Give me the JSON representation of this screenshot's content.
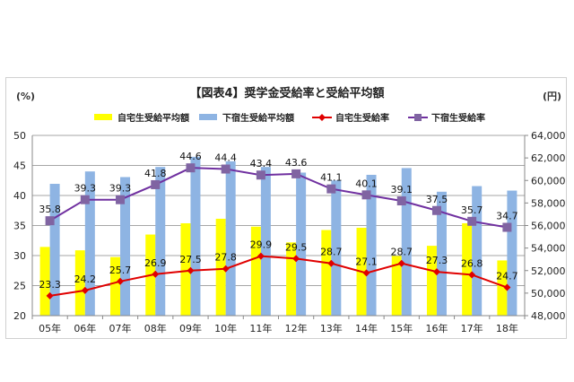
{
  "chart_data": {
    "type": "bar+line",
    "title": "【図表4】奨学金受給率と受給平均額",
    "y_left_unit": "(%)",
    "y_right_unit": "(円)",
    "ylim_left": [
      20,
      50
    ],
    "ylim_right": [
      48000,
      64000
    ],
    "yticks_left": [
      "20",
      "25",
      "30",
      "35",
      "40",
      "45",
      "50"
    ],
    "yticks_right": [
      "48,000",
      "50,000",
      "52,000",
      "54,000",
      "56,000",
      "58,000",
      "60,000",
      "62,000",
      "64,000"
    ],
    "grid": true,
    "legend_position": "top",
    "categories": [
      "05年",
      "06年",
      "07年",
      "08年",
      "09年",
      "10年",
      "11年",
      "12年",
      "13年",
      "14年",
      "15年",
      "16年",
      "17年",
      "18年"
    ],
    "series": [
      {
        "name": "自宅生受給平均額",
        "type": "bar",
        "axis": "right",
        "color": "#ffff00",
        "values": [
          54100,
          53800,
          53200,
          55200,
          56200,
          56600,
          55900,
          54500,
          55600,
          55800,
          53300,
          54200,
          56200,
          52900
        ]
      },
      {
        "name": "下宿生受給平均額",
        "type": "bar",
        "axis": "right",
        "color": "#8eb4e3",
        "values": [
          59700,
          60800,
          60300,
          61200,
          62100,
          61700,
          61200,
          60700,
          60000,
          60500,
          61100,
          59000,
          59500,
          59100
        ]
      },
      {
        "name": "自宅生受給率",
        "type": "line",
        "axis": "left",
        "color": "#e00000",
        "marker": "diamond",
        "values": [
          23.3,
          24.2,
          25.7,
          26.9,
          27.5,
          27.8,
          29.9,
          29.5,
          28.7,
          27.1,
          28.7,
          27.3,
          26.8,
          24.7
        ],
        "labels": [
          "23.3",
          "24.2",
          "25.7",
          "26.9",
          "27.5",
          "27.8",
          "29.9",
          "29.5",
          "28.7",
          "27.1",
          "28.7",
          "27.3",
          "26.8",
          "24.7"
        ]
      },
      {
        "name": "下宿生受給率",
        "type": "line",
        "axis": "left",
        "color": "#7030a0",
        "marker": "square",
        "marker_color": "#8064a2",
        "values": [
          35.8,
          39.3,
          39.3,
          41.8,
          44.6,
          44.4,
          43.4,
          43.6,
          41.1,
          40.1,
          39.1,
          37.5,
          35.7,
          34.7
        ],
        "labels": [
          "35.8",
          "39.3",
          "39.3",
          "41.8",
          "44.6",
          "44.4",
          "43.4",
          "43.6",
          "41.1",
          "40.1",
          "39.1",
          "37.5",
          "35.7",
          "34.7"
        ]
      }
    ]
  }
}
